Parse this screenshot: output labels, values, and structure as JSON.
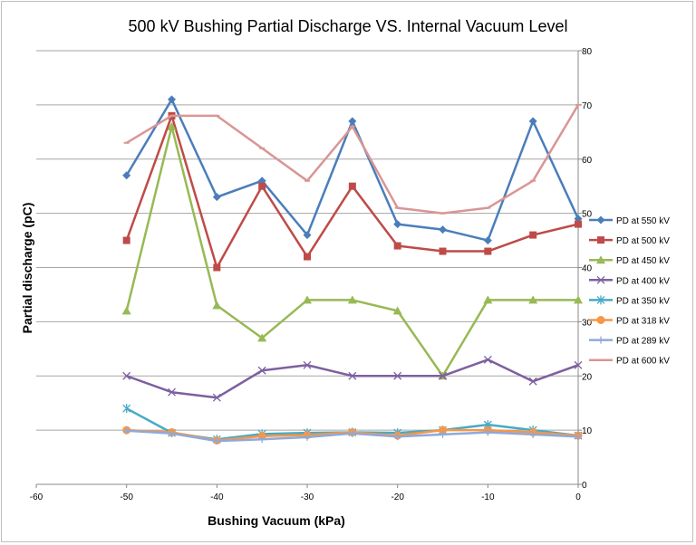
{
  "chart_data": {
    "type": "line",
    "title": "500 kV Bushing Partial Discharge VS. Internal Vacuum Level",
    "xlabel": "Bushing Vacuum (kPa)",
    "ylabel": "Partial discharge (pC)",
    "xlim": [
      -60,
      0
    ],
    "ylim": [
      0,
      80
    ],
    "xticks": [
      -60,
      -50,
      -40,
      -30,
      -20,
      -10,
      0
    ],
    "yticks": [
      0,
      10,
      20,
      30,
      40,
      50,
      60,
      70,
      80
    ],
    "grid": true,
    "legend_position": "right",
    "x": [
      -50,
      -45,
      -40,
      -35,
      -30,
      -25,
      -20,
      -15,
      -10,
      -5,
      0
    ],
    "series": [
      {
        "name": "PD at 550 kV",
        "color": "#4a7ebb",
        "marker": "diamond",
        "values": [
          57,
          71,
          53,
          56,
          46,
          67,
          48,
          47,
          45,
          67,
          49
        ]
      },
      {
        "name": "PD at 500 kV",
        "color": "#be4b48",
        "marker": "square",
        "values": [
          45,
          68,
          40,
          55,
          42,
          55,
          44,
          43,
          43,
          46,
          48
        ]
      },
      {
        "name": "PD at 450 kV",
        "color": "#98b954",
        "marker": "triangle",
        "values": [
          32,
          66,
          33,
          27,
          34,
          34,
          32,
          20,
          34,
          34,
          34
        ]
      },
      {
        "name": "PD at 400 kV",
        "color": "#7d60a0",
        "marker": "x",
        "values": [
          20,
          17,
          16,
          21,
          22,
          20,
          20,
          20,
          23,
          19,
          22
        ]
      },
      {
        "name": "PD at 350 kV",
        "color": "#46aac5",
        "marker": "star",
        "values": [
          14,
          9.5,
          8.3,
          9.3,
          9.5,
          9.6,
          9.5,
          10,
          11,
          10,
          9
        ]
      },
      {
        "name": "PD at 318 kV",
        "color": "#f79646",
        "marker": "circle",
        "values": [
          10,
          9.6,
          8.1,
          8.9,
          9.1,
          9.6,
          9.0,
          10,
          10,
          9.6,
          9
        ]
      },
      {
        "name": "PD at 289 kV",
        "color": "#8ea9db",
        "marker": "plus",
        "values": [
          9.9,
          9.4,
          8,
          8.3,
          8.7,
          9.4,
          8.8,
          9.2,
          9.6,
          9.2,
          8.8
        ]
      },
      {
        "name": "PD at 600 kV",
        "color": "#d99694",
        "marker": "dash",
        "values": [
          63,
          68,
          68,
          62,
          56,
          66,
          51,
          50,
          51,
          56,
          70
        ]
      }
    ]
  }
}
